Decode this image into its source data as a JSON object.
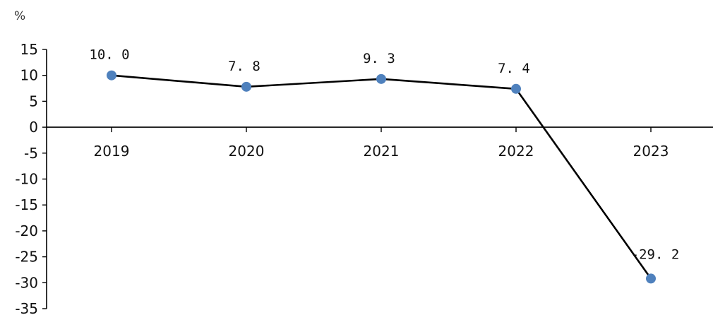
{
  "chart_data": {
    "type": "line",
    "title": "",
    "xlabel": "",
    "ylabel": "%",
    "categories": [
      "2019",
      "2020",
      "2021",
      "2022",
      "2023"
    ],
    "series": [
      {
        "values": [
          10.0,
          7.8,
          9.3,
          7.4,
          -29.2
        ],
        "data_labels": [
          "10. 0",
          "7. 8",
          "9. 3",
          "7. 4",
          "-29. 2"
        ]
      }
    ],
    "ylim": [
      -35,
      15
    ],
    "yticks": [
      15,
      10,
      5,
      0,
      -5,
      -10,
      -15,
      -20,
      -25,
      -30,
      -35
    ],
    "grid": false,
    "legend": "none",
    "colors": {
      "line": "#000000",
      "marker": "#4f81bd",
      "axis": "#000000"
    }
  }
}
